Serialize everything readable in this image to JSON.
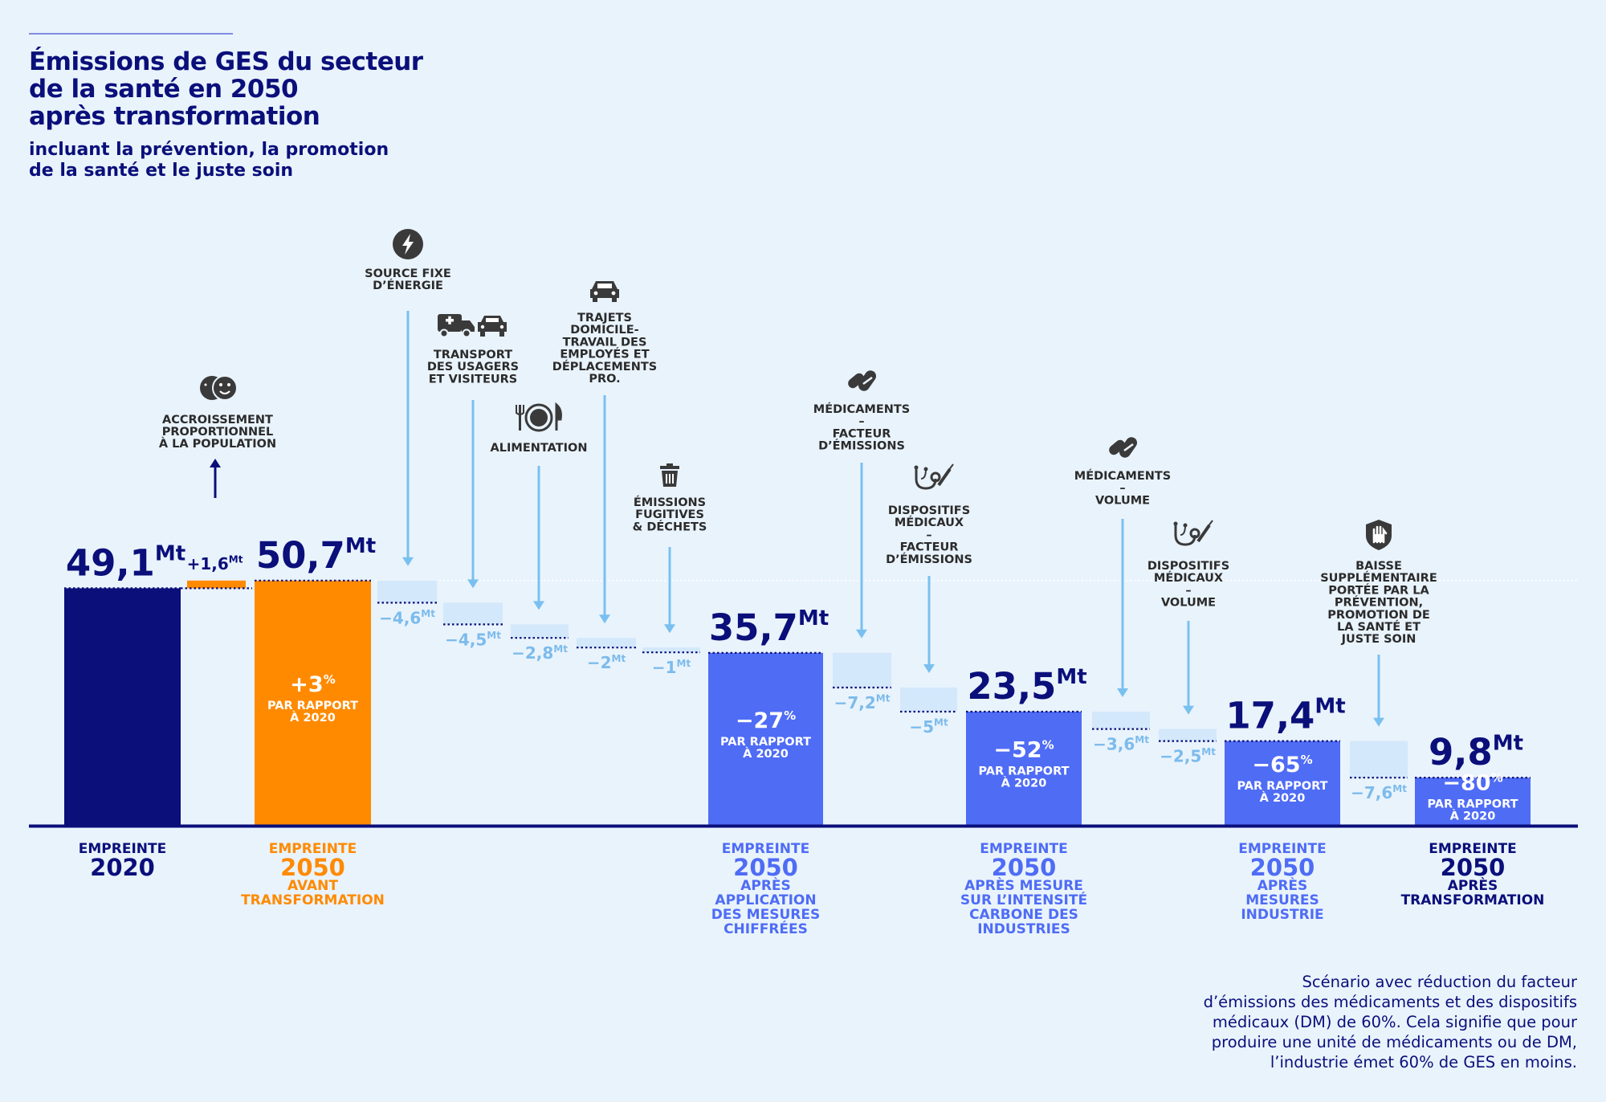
{
  "header": {
    "title_lines": [
      "Émissions de GES du secteur",
      "de la santé en 2050",
      "après transformation"
    ],
    "subtitle_lines": [
      "incluant la prévention, la promotion",
      "de la santé et le juste soin"
    ]
  },
  "note_lines": [
    "Scénario avec réduction du facteur",
    "d’émissions des médicaments et des dispositifs",
    "médicaux (DM) de 60%. Cela signifie que pour",
    "produire une unité de médicaments ou de DM,",
    "l’industrie émet 60% de GES en moins."
  ],
  "colors": {
    "navy": "#0a0f7a",
    "orange": "#ff8a00",
    "blue": "#4f6cf5",
    "light": "#d3e8fb",
    "light_text": "#7cbbec",
    "arrow": "#79c0f0",
    "icon": "#3a3a3a",
    "background": "#e9f3fc"
  },
  "chart_data": {
    "type": "waterfall",
    "unit": "Mt",
    "title": "Émissions de GES du secteur de la santé en 2050 après transformation",
    "subtitle": "incluant la prévention, la promotion de la santé et le juste soin",
    "totals": [
      {
        "id": "t2020",
        "value": 49.1,
        "value_label": "49,1",
        "color": "navy",
        "pct": null,
        "pct_lines": [],
        "label_lines": [
          "EMPREINTE",
          "2020"
        ],
        "label_color": "navy"
      },
      {
        "id": "t2050a",
        "value": 50.7,
        "value_label": "50,7",
        "color": "orange",
        "pct": "+3",
        "pct_lines": [
          "PAR RAPPORT",
          "À 2020"
        ],
        "label_lines": [
          "EMPREINTE",
          "2050",
          "AVANT",
          "TRANSFORMATION"
        ],
        "label_color": "orange"
      },
      {
        "id": "t2050b",
        "value": 35.7,
        "value_label": "35,7",
        "color": "blue",
        "pct": "−27",
        "pct_lines": [
          "PAR RAPPORT",
          "À 2020"
        ],
        "label_lines": [
          "EMPREINTE",
          "2050",
          "APRÈS",
          "APPLICATION",
          "DES MESURES",
          "CHIFFRÉES"
        ],
        "label_color": "blue"
      },
      {
        "id": "t2050c",
        "value": 23.5,
        "value_label": "23,5",
        "color": "blue",
        "pct": "−52",
        "pct_lines": [
          "PAR RAPPORT",
          "À 2020"
        ],
        "label_lines": [
          "EMPREINTE",
          "2050",
          "APRÈS MESURE",
          "SUR L’INTENSITÉ",
          "CARBONE DES",
          "INDUSTRIES"
        ],
        "label_color": "blue"
      },
      {
        "id": "t2050d",
        "value": 17.4,
        "value_label": "17,4",
        "color": "blue",
        "pct": "−65",
        "pct_lines": [
          "PAR RAPPORT",
          "À 2020"
        ],
        "label_lines": [
          "EMPREINTE",
          "2050",
          "APRÈS",
          "MESURES",
          "INDUSTRIE"
        ],
        "label_color": "blue"
      },
      {
        "id": "t2050e",
        "value": 9.8,
        "value_label": "9,8",
        "color": "blue",
        "pct": "−80",
        "pct_lines": [
          "PAR RAPPORT",
          "À 2020"
        ],
        "label_lines": [
          "EMPREINTE",
          "2050",
          "APRÈS",
          "TRANSFORMATION"
        ],
        "label_color": "navy"
      }
    ],
    "increase": {
      "value": 1.6,
      "value_label": "+1,6",
      "label_lines": [
        "ACCROISSEMENT",
        "PROPORTIONNEL",
        "À LA POPULATION"
      ],
      "icon": "population-faces-icon"
    },
    "reductions": [
      {
        "value": -4.6,
        "value_label": "−4,6",
        "label_lines": [
          "SOURCE FIXE",
          "D’ÉNERGIE"
        ],
        "icon": "lightning-icon"
      },
      {
        "value": -4.5,
        "value_label": "−4,5",
        "label_lines": [
          "TRANSPORT",
          "DES USAGERS",
          "ET VISITEURS"
        ],
        "icon": "ambulance-car-icon"
      },
      {
        "value": -2.8,
        "value_label": "−2,8",
        "label_lines": [
          "ALIMENTATION"
        ],
        "icon": "plate-cutlery-icon"
      },
      {
        "value": -2,
        "value_label": "−2",
        "label_lines": [
          "TRAJETS",
          "DOMICILE-",
          "TRAVAIL DES",
          "EMPLOYÉS ET",
          "DÉPLACEMENTS",
          "PRO."
        ],
        "icon": "car-icon"
      },
      {
        "value": -1,
        "value_label": "−1",
        "label_lines": [
          "ÉMISSIONS",
          "FUGITIVES",
          "& DÉCHETS"
        ],
        "icon": "trash-icon"
      },
      {
        "value": -7.2,
        "value_label": "−7,2",
        "label_lines": [
          "MÉDICAMENTS",
          "–",
          "FACTEUR",
          "D’ÉMISSIONS"
        ],
        "icon": "pills-icon"
      },
      {
        "value": -5,
        "value_label": "−5",
        "label_lines": [
          "DISPOSITIFS",
          "MÉDICAUX",
          "–",
          "FACTEUR",
          "D’ÉMISSIONS"
        ],
        "icon": "stethoscope-icon"
      },
      {
        "value": -3.6,
        "value_label": "−3,6",
        "label_lines": [
          "MÉDICAMENTS",
          "–",
          "VOLUME"
        ],
        "icon": "pills-icon"
      },
      {
        "value": -2.5,
        "value_label": "−2,5",
        "label_lines": [
          "DISPOSITIFS",
          "MÉDICAUX",
          "–",
          "VOLUME"
        ],
        "icon": "stethoscope-icon"
      },
      {
        "value": -7.6,
        "value_label": "−7,6",
        "label_lines": [
          "BAISSE",
          "SUPPLÉMENTAIRE",
          "PORTÉE PAR LA",
          "PRÉVENTION,",
          "PROMOTION DE",
          "LA SANTÉ ET",
          "JUSTE SOIN"
        ],
        "icon": "shield-hand-icon"
      }
    ],
    "order": [
      "T0",
      "I",
      "T1",
      "R0",
      "R1",
      "R2",
      "R3",
      "R4",
      "T2",
      "R5",
      "R6",
      "T3",
      "R7",
      "R8",
      "T4",
      "R9",
      "T5"
    ]
  }
}
